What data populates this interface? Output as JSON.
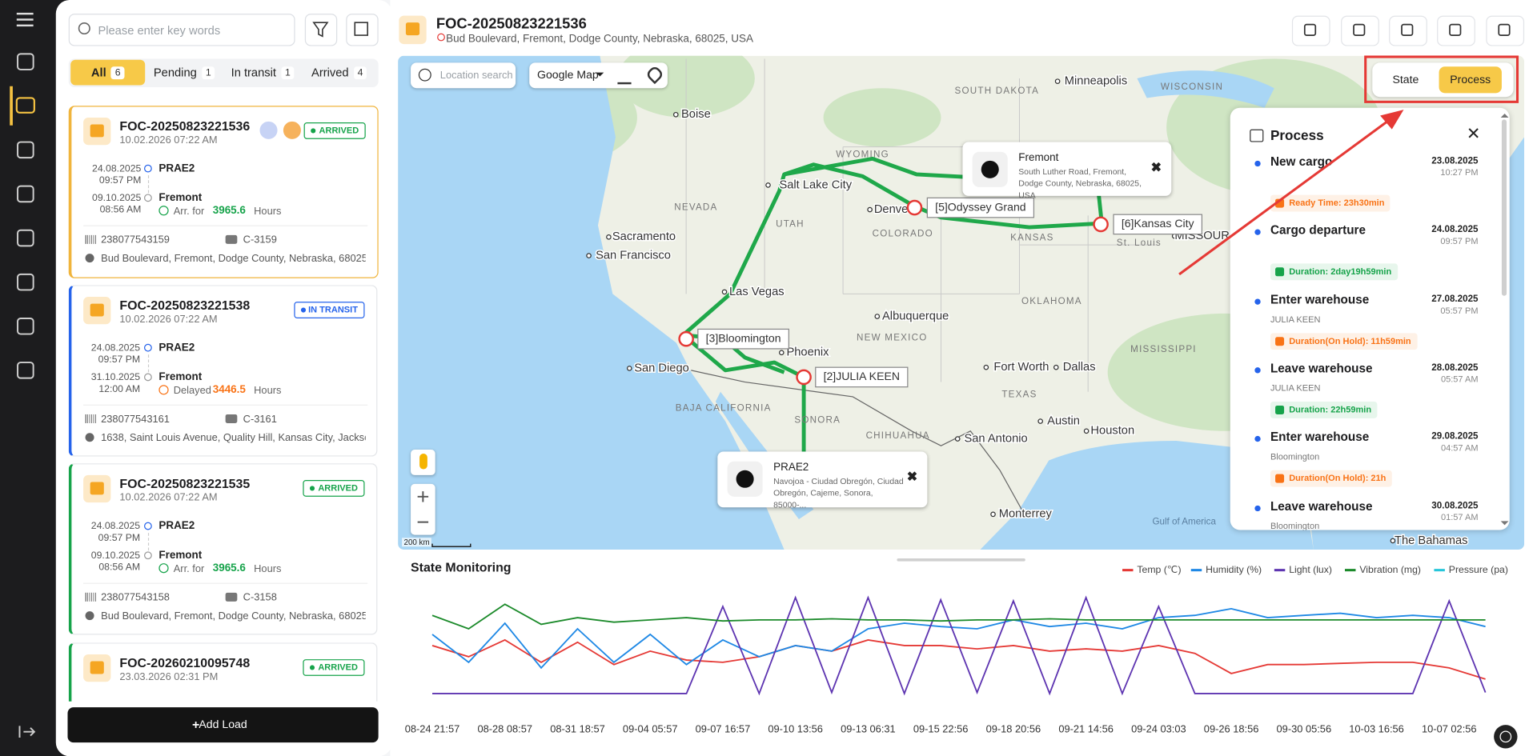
{
  "search": {
    "placeholder": "Please enter key words"
  },
  "tabs": [
    {
      "label": "All",
      "count": 6
    },
    {
      "label": "Pending",
      "count": 1
    },
    {
      "label": "In transit",
      "count": 1
    },
    {
      "label": "Arrived",
      "count": 4
    }
  ],
  "loads": [
    {
      "id": "FOC-20250823221536",
      "created": "10.02.2026 07:22 AM",
      "badge": "ARRIVED",
      "color": "#16a34a",
      "from": {
        "date": "24.08.2025",
        "time": "09:57 PM",
        "place": "PRAE2"
      },
      "to": {
        "date": "09.10.2025",
        "time": "08:56 AM",
        "place": "Fremont"
      },
      "status": "Arr. for",
      "hours": "3965.6",
      "unit": "Hours",
      "status_color": "#16a34a",
      "barcode": "238077543159",
      "truck": "C-3159",
      "address": "Bud Boulevard, Fremont, Dodge County, Nebraska, 68025, U..."
    },
    {
      "id": "FOC-20250823221538",
      "created": "10.02.2026 07:22 AM",
      "badge": "IN TRANSIT",
      "color": "#2563eb",
      "from": {
        "date": "24.08.2025",
        "time": "09:57 PM",
        "place": "PRAE2"
      },
      "to": {
        "date": "31.10.2025",
        "time": "12:00 AM",
        "place": "Fremont"
      },
      "status": "Delayed",
      "hours": "3446.5",
      "unit": "Hours",
      "status_color": "#f97316",
      "barcode": "238077543161",
      "truck": "C-3161",
      "address": "1638, Saint Louis Avenue, Quality Hill, Kansas City, Jackson C..."
    },
    {
      "id": "FOC-20250823221535",
      "created": "10.02.2026 07:22 AM",
      "badge": "ARRIVED",
      "color": "#16a34a",
      "from": {
        "date": "24.08.2025",
        "time": "09:57 PM",
        "place": "PRAE2"
      },
      "to": {
        "date": "09.10.2025",
        "time": "08:56 AM",
        "place": "Fremont"
      },
      "status": "Arr. for",
      "hours": "3965.6",
      "unit": "Hours",
      "status_color": "#16a34a",
      "barcode": "238077543158",
      "truck": "C-3158",
      "address": "Bud Boulevard, Fremont, Dodge County, Nebraska, 68025, U..."
    },
    {
      "id": "FOC-20260210095748",
      "created": "23.03.2026 02:31 PM",
      "badge": "ARRIVED",
      "color": "#16a34a"
    }
  ],
  "add_load": "Add Load",
  "header": {
    "title": "FOC-20250823221536",
    "address": "Bud Boulevard, Fremont, Dodge County, Nebraska, 68025, USA"
  },
  "map": {
    "location_search": "Location search",
    "map_type": "Google Map",
    "scale": "200 km",
    "labels": [
      "Minneapolis",
      "WISCONSIN",
      "SOUTH DAKOTA",
      "Boise",
      "WYOMING",
      "Salt Lake City",
      "NEVADA",
      "UTAH",
      "Denver",
      "COLORADO",
      "KANSAS",
      "MISSOURI",
      "St. Louis",
      "Sacramento",
      "San Francisco",
      "Las Vegas",
      "Albuquerque",
      "NEW MEXICO",
      "OKLAHOMA",
      "Phoenix",
      "San Diego",
      "Fort Worth",
      "Dallas",
      "TEXAS",
      "BAJA CALIFORNIA",
      "SONORA",
      "CHIHUAHUA",
      "Austin",
      "Houston",
      "San Antonio",
      "MISSISSIPPI",
      "Monterrey",
      "Gulf of America",
      "The Bahamas"
    ],
    "stops": [
      "[5]Odyssey Grand",
      "[6]Kansas City",
      "[3]Bloomington",
      "[2]JULIA KEEN"
    ],
    "popups": [
      {
        "title": "Fremont",
        "address": "South Luther Road, Fremont, Dodge County, Nebraska, 68025, USA"
      },
      {
        "title": "PRAE2",
        "address": "Navojoa - Ciudad Obregón, Ciudad Obregón, Cajeme, Sonora, 85000-..."
      }
    ]
  },
  "toggle": [
    "State",
    "Process"
  ],
  "process": {
    "title": "Process",
    "events": [
      {
        "name": "New cargo",
        "date": "23.08.2025",
        "time": "10:27 PM"
      },
      {
        "name": "Cargo departure",
        "date": "24.08.2025",
        "time": "09:57 PM"
      },
      {
        "name": "Enter warehouse",
        "place": "JULIA KEEN",
        "date": "27.08.2025",
        "time": "05:57 PM"
      },
      {
        "name": "Leave warehouse",
        "place": "JULIA KEEN",
        "date": "28.08.2025",
        "time": "05:57 AM"
      },
      {
        "name": "Enter warehouse",
        "place": "Bloomington",
        "date": "29.08.2025",
        "time": "04:57 AM"
      },
      {
        "name": "Leave warehouse",
        "place": "Bloomington",
        "date": "30.08.2025",
        "time": "01:57 AM"
      }
    ],
    "durations": [
      {
        "text": "Ready Time: 23h30min",
        "color": "#f97316"
      },
      {
        "text": "Duration: 2day19h59min",
        "color": "#16a34a"
      },
      {
        "text": "Duration(On Hold): 11h59min",
        "color": "#f97316"
      },
      {
        "text": "Duration: 22h59min",
        "color": "#16a34a"
      },
      {
        "text": "Duration(On Hold): 21h",
        "color": "#f97316"
      }
    ]
  },
  "chart_data": {
    "type": "line",
    "title": "State Monitoring",
    "x": [
      "08-24 21:57",
      null,
      "08-28 08:57",
      null,
      "08-31 18:57",
      null,
      "09-04 05:57",
      null,
      "09-07 16:57",
      null,
      "09-10 13:56",
      null,
      "09-13 06:31",
      null,
      "09-15 22:56",
      null,
      "09-18 20:56",
      null,
      "09-21 14:56",
      null,
      "09-24 03:03",
      null,
      "09-26 18:56",
      null,
      "09-30 05:56",
      null,
      "10-03 16:56",
      null,
      "10-07 02:56",
      null
    ],
    "series": [
      {
        "name": "Temp (℃)",
        "color": "#e53935",
        "values": [
          45,
          35,
          50,
          30,
          48,
          28,
          40,
          32,
          30,
          35,
          45,
          40,
          50,
          45,
          45,
          42,
          45,
          40,
          42,
          40,
          45,
          38,
          20,
          28,
          28,
          29,
          30,
          30,
          25,
          15
        ]
      },
      {
        "name": "Humidity (%)",
        "color": "#1e88e5",
        "values": [
          55,
          30,
          65,
          25,
          60,
          30,
          55,
          28,
          50,
          35,
          45,
          40,
          60,
          65,
          62,
          60,
          68,
          62,
          65,
          60,
          70,
          72,
          78,
          70,
          72,
          74,
          70,
          72,
          70,
          62
        ]
      },
      {
        "name": "Light (lux)",
        "color": "#5e35b1",
        "values": [
          2,
          2,
          2,
          2,
          2,
          2,
          2,
          2,
          80,
          2,
          88,
          3,
          88,
          2,
          86,
          3,
          85,
          2,
          88,
          2,
          80,
          2,
          2,
          2,
          2,
          2,
          2,
          2,
          85,
          3
        ]
      },
      {
        "name": "Vibration (mg)",
        "color": "#1b8a2a",
        "values": [
          72,
          60,
          82,
          64,
          70,
          66,
          68,
          70,
          67,
          68,
          68,
          69,
          68,
          68,
          67,
          68,
          68,
          69,
          68,
          68,
          68,
          68,
          68,
          68,
          68,
          68,
          68,
          68,
          68,
          68
        ]
      },
      {
        "name": "Pressure (pa)",
        "color": "#26c6da",
        "values": [
          null,
          null,
          null,
          null,
          null,
          null,
          null,
          null,
          null,
          null,
          null,
          null,
          null,
          null,
          null,
          null,
          null,
          null,
          null,
          null,
          null,
          null,
          null,
          null,
          null,
          null,
          null,
          null,
          null,
          null
        ]
      }
    ]
  }
}
